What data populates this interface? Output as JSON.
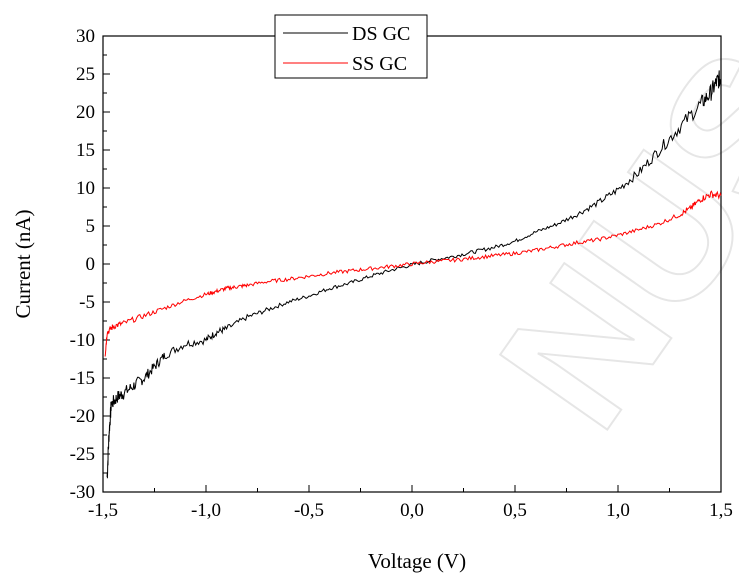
{
  "chart_data": {
    "type": "line",
    "xlabel": "Voltage (V)",
    "ylabel": "Current (nA)",
    "xlim": [
      -1.5,
      1.5
    ],
    "ylim": [
      -30,
      30
    ],
    "x_ticks": [
      -1.5,
      -1.0,
      -0.5,
      0.0,
      0.5,
      1.0,
      1.5
    ],
    "x_tick_labels": [
      "-1,5",
      "-1,0",
      "-0,5",
      "0,0",
      "0,5",
      "1,0",
      "1,5"
    ],
    "y_ticks": [
      -30,
      -25,
      -20,
      -15,
      -10,
      -5,
      0,
      5,
      10,
      15,
      20,
      25,
      30
    ],
    "y_tick_labels": [
      "-30",
      "-25",
      "-20",
      "-15",
      "-10",
      "-5",
      "0",
      "5",
      "10",
      "15",
      "20",
      "25",
      "30"
    ],
    "legend_position": "top-center",
    "grid": false,
    "series": [
      {
        "name": "DS GC",
        "color": "#000000",
        "points": [
          [
            -1.48,
            -28
          ],
          [
            -1.47,
            -22
          ],
          [
            -1.46,
            -18.5
          ],
          [
            -1.43,
            -17.5
          ],
          [
            -1.4,
            -17
          ],
          [
            -1.35,
            -16
          ],
          [
            -1.3,
            -15
          ],
          [
            -1.25,
            -13.5
          ],
          [
            -1.2,
            -12
          ],
          [
            -1.1,
            -10.5
          ],
          [
            -1.0,
            -10
          ],
          [
            -0.95,
            -9
          ],
          [
            -0.9,
            -8.5
          ],
          [
            -0.8,
            -7
          ],
          [
            -0.7,
            -6
          ],
          [
            -0.6,
            -5
          ],
          [
            -0.5,
            -4.2
          ],
          [
            -0.4,
            -3.2
          ],
          [
            -0.3,
            -2.5
          ],
          [
            -0.2,
            -1.6
          ],
          [
            -0.1,
            -0.8
          ],
          [
            0.0,
            -0.1
          ],
          [
            0.1,
            0.5
          ],
          [
            0.2,
            1.0
          ],
          [
            0.3,
            1.6
          ],
          [
            0.4,
            2.2
          ],
          [
            0.5,
            3.0
          ],
          [
            0.6,
            4.2
          ],
          [
            0.7,
            5.2
          ],
          [
            0.8,
            6.5
          ],
          [
            0.9,
            8.0
          ],
          [
            1.0,
            9.8
          ],
          [
            1.1,
            12.0
          ],
          [
            1.2,
            15.0
          ],
          [
            1.3,
            18.0
          ],
          [
            1.4,
            21.0
          ],
          [
            1.45,
            22.5
          ],
          [
            1.48,
            24.0
          ],
          [
            1.5,
            24.5
          ]
        ]
      },
      {
        "name": "SS GC",
        "color": "#ff0000",
        "points": [
          [
            -1.49,
            -12
          ],
          [
            -1.48,
            -9
          ],
          [
            -1.45,
            -8.2
          ],
          [
            -1.4,
            -7.8
          ],
          [
            -1.3,
            -6.8
          ],
          [
            -1.2,
            -5.8
          ],
          [
            -1.1,
            -4.8
          ],
          [
            -1.0,
            -4.0
          ],
          [
            -0.95,
            -3.6
          ],
          [
            -0.9,
            -3.2
          ],
          [
            -0.85,
            -3.0
          ],
          [
            -0.8,
            -2.8
          ],
          [
            -0.7,
            -2.3
          ],
          [
            -0.6,
            -2.0
          ],
          [
            -0.5,
            -1.6
          ],
          [
            -0.4,
            -1.2
          ],
          [
            -0.3,
            -0.9
          ],
          [
            -0.2,
            -0.6
          ],
          [
            -0.1,
            -0.3
          ],
          [
            0.0,
            0.0
          ],
          [
            0.1,
            0.3
          ],
          [
            0.2,
            0.5
          ],
          [
            0.3,
            0.8
          ],
          [
            0.4,
            1.1
          ],
          [
            0.5,
            1.4
          ],
          [
            0.6,
            1.8
          ],
          [
            0.7,
            2.3
          ],
          [
            0.8,
            2.8
          ],
          [
            0.9,
            3.2
          ],
          [
            1.0,
            3.8
          ],
          [
            1.1,
            4.5
          ],
          [
            1.2,
            5.3
          ],
          [
            1.3,
            6.5
          ],
          [
            1.35,
            7.3
          ],
          [
            1.4,
            8.5
          ],
          [
            1.45,
            9.2
          ],
          [
            1.5,
            9.0
          ]
        ]
      }
    ]
  }
}
